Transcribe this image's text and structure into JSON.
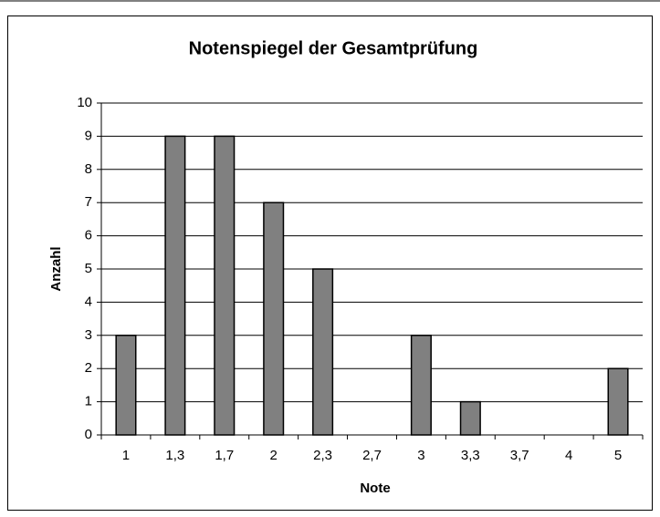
{
  "chart_data": {
    "type": "bar",
    "title": "Notenspiegel der Gesamtprüfung",
    "x_label": "Note",
    "y_label": "Anzahl",
    "categories": [
      "1",
      "1,3",
      "1,7",
      "2",
      "2,3",
      "2,7",
      "3",
      "3,3",
      "3,7",
      "4",
      "5"
    ],
    "values": [
      3,
      9,
      9,
      7,
      5,
      0,
      3,
      1,
      0,
      0,
      2
    ],
    "color": "#808080",
    "ylim": [
      0,
      10
    ],
    "yticks": [
      0,
      1,
      2,
      3,
      4,
      5,
      6,
      7,
      8,
      9,
      10
    ],
    "grid": true
  }
}
